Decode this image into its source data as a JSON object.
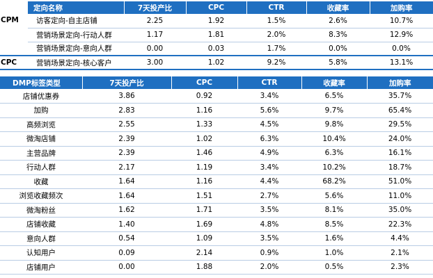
{
  "top_table": {
    "headers": [
      "定向名称",
      "7天投产比",
      "CPC",
      "CTR",
      "收藏率",
      "加购率"
    ],
    "groups": [
      {
        "label": "CPM",
        "rows": [
          {
            "name": "访客定向-自主店铺",
            "roi": "2.25",
            "cpc": "1.92",
            "ctr": "1.5%",
            "fav": "2.6%",
            "cart": "10.7%"
          },
          {
            "name": "营销场景定向-行动人群",
            "roi": "1.17",
            "cpc": "1.81",
            "ctr": "2.0%",
            "fav": "8.3%",
            "cart": "12.9%"
          },
          {
            "name": "营销场景定向-意向人群",
            "roi": "0.00",
            "cpc": "0.03",
            "ctr": "1.7%",
            "fav": "0.0%",
            "cart": "0.0%"
          }
        ]
      },
      {
        "label": "CPC",
        "rows": [
          {
            "name": "营销场景定向-核心客户",
            "roi": "3.00",
            "cpc": "1.02",
            "ctr": "9.2%",
            "fav": "5.8%",
            "cart": "13.1%"
          }
        ]
      }
    ]
  },
  "dmp_table": {
    "headers": [
      "DMP标签类型",
      "7天投产比",
      "CPC",
      "CTR",
      "收藏率",
      "加购率"
    ],
    "rows": [
      {
        "name": "店铺优惠券",
        "roi": "3.86",
        "cpc": "0.92",
        "ctr": "3.4%",
        "fav": "6.5%",
        "cart": "35.7%"
      },
      {
        "name": "加购",
        "roi": "2.83",
        "cpc": "1.16",
        "ctr": "5.6%",
        "fav": "9.7%",
        "cart": "65.4%"
      },
      {
        "name": "高频浏览",
        "roi": "2.55",
        "cpc": "1.33",
        "ctr": "4.5%",
        "fav": "9.8%",
        "cart": "29.5%"
      },
      {
        "name": "微淘店铺",
        "roi": "2.39",
        "cpc": "1.02",
        "ctr": "6.3%",
        "fav": "10.4%",
        "cart": "24.0%"
      },
      {
        "name": "主营品牌",
        "roi": "2.39",
        "cpc": "1.46",
        "ctr": "4.9%",
        "fav": "6.3%",
        "cart": "16.1%"
      },
      {
        "name": "行动人群",
        "roi": "2.17",
        "cpc": "1.19",
        "ctr": "3.4%",
        "fav": "10.2%",
        "cart": "18.7%"
      },
      {
        "name": "收藏",
        "roi": "1.64",
        "cpc": "1.16",
        "ctr": "4.4%",
        "fav": "68.2%",
        "cart": "51.0%"
      },
      {
        "name": "浏览收藏频次",
        "roi": "1.64",
        "cpc": "1.51",
        "ctr": "2.7%",
        "fav": "5.6%",
        "cart": "11.0%"
      },
      {
        "name": "微淘粉丝",
        "roi": "1.62",
        "cpc": "1.71",
        "ctr": "3.5%",
        "fav": "8.1%",
        "cart": "35.0%"
      },
      {
        "name": "店铺收藏",
        "roi": "1.40",
        "cpc": "1.69",
        "ctr": "4.8%",
        "fav": "8.5%",
        "cart": "22.3%"
      },
      {
        "name": "意向人群",
        "roi": "0.54",
        "cpc": "1.09",
        "ctr": "3.5%",
        "fav": "1.6%",
        "cart": "4.4%"
      },
      {
        "name": "认知用户",
        "roi": "0.09",
        "cpc": "2.14",
        "ctr": "0.9%",
        "fav": "1.0%",
        "cart": "2.1%"
      },
      {
        "name": "店铺用户",
        "roi": "0.00",
        "cpc": "1.88",
        "ctr": "2.0%",
        "fav": "0.5%",
        "cart": "2.3%"
      }
    ]
  }
}
